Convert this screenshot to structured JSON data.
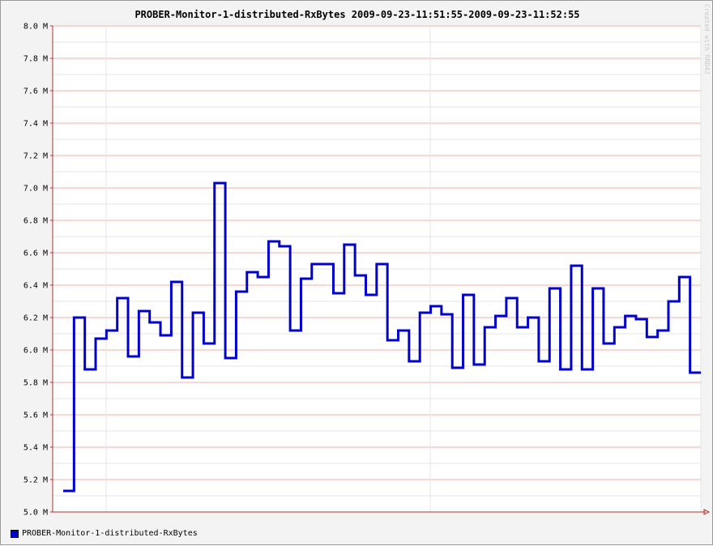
{
  "colors": {
    "background": "#f3f3f3",
    "canvas": "#ffffff",
    "grid_minor": "#e6e6e6",
    "grid_major": "#f0b0a0",
    "axis": "#b03030",
    "series": "#0000cc"
  },
  "watermark": "Created with RRD4J",
  "chart_data": {
    "type": "line",
    "step": true,
    "title": "PROBER-Monitor-1-distributed-RxBytes 2009-09-23-11:51:55-2009-09-23-11:52:55",
    "xlabel": "",
    "ylabel": "",
    "ylim": [
      5.0,
      8.0
    ],
    "y_unit": "M",
    "y_ticks": [
      "5.0 M",
      "5.2 M",
      "5.4 M",
      "5.6 M",
      "5.8 M",
      "6.0 M",
      "6.2 M",
      "6.4 M",
      "6.6 M",
      "6.8 M",
      "7.0 M",
      "7.2 M",
      "7.4 M",
      "7.6 M",
      "7.8 M",
      "8.0 M"
    ],
    "grid": true,
    "legend": "bottom-left",
    "series": [
      {
        "name": "PROBER-Monitor-1-distributed-RxBytes",
        "values": [
          5.13,
          6.2,
          5.88,
          6.07,
          6.12,
          6.32,
          5.96,
          6.24,
          6.17,
          6.09,
          6.42,
          5.83,
          6.23,
          6.04,
          7.03,
          5.95,
          6.36,
          6.48,
          6.45,
          6.67,
          6.64,
          6.12,
          6.44,
          6.53,
          6.53,
          6.35,
          6.65,
          6.46,
          6.34,
          6.53,
          6.06,
          6.12,
          5.93,
          6.23,
          6.27,
          6.22,
          5.89,
          6.34,
          5.91,
          6.14,
          6.21,
          6.32,
          6.14,
          6.2,
          5.93,
          6.38,
          5.88,
          6.52,
          5.88,
          6.38,
          6.04,
          6.14,
          6.21,
          6.19,
          6.08,
          6.12,
          6.3,
          6.45,
          5.86
        ]
      }
    ]
  }
}
